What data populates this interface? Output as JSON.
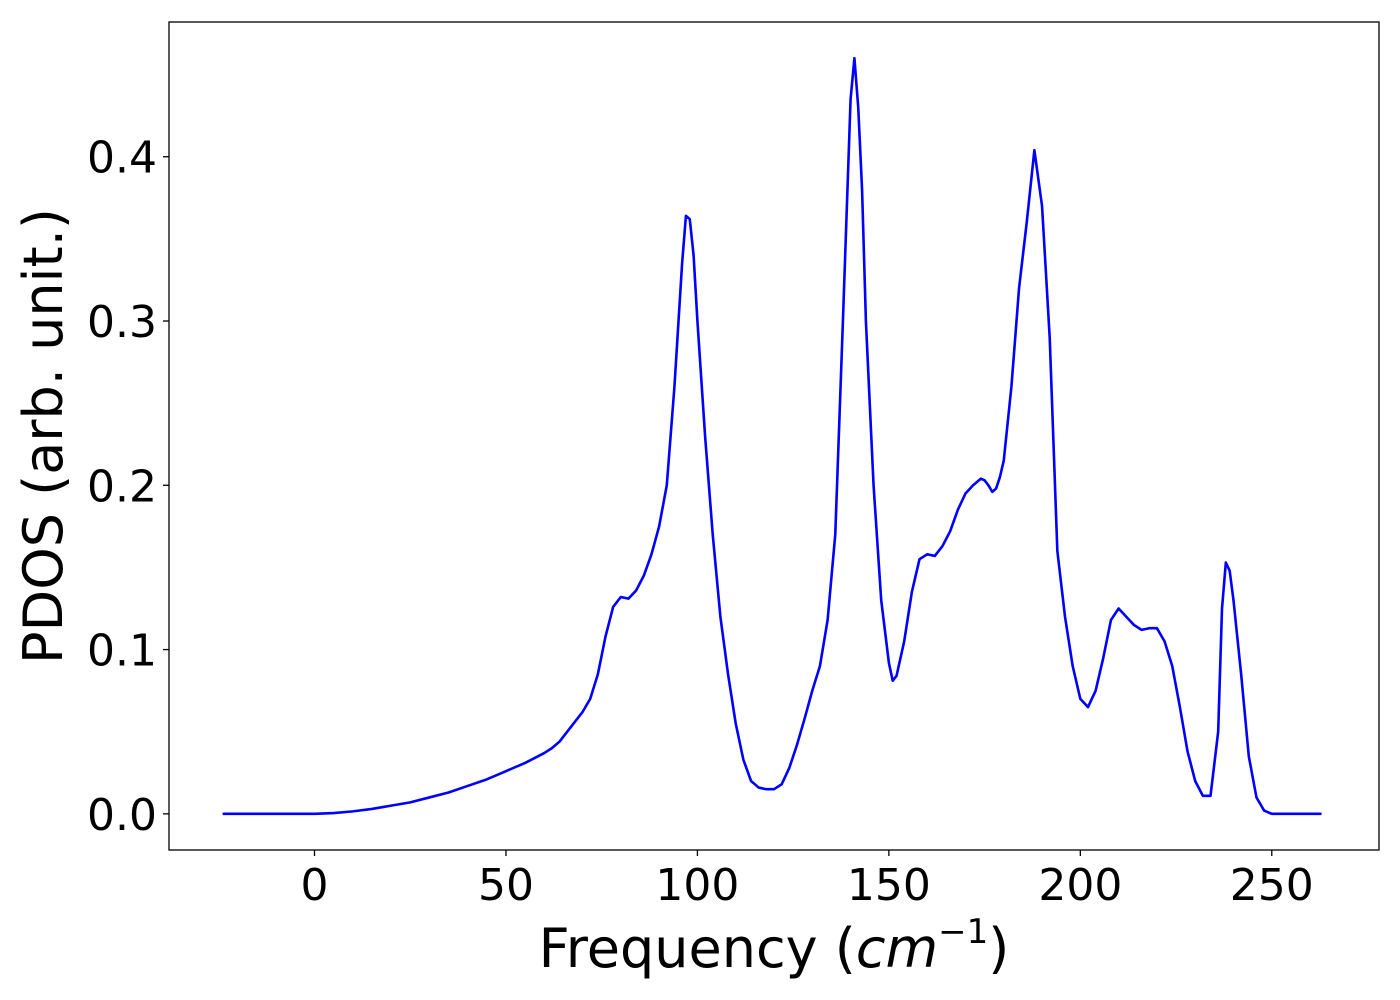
{
  "chart_data": {
    "type": "line",
    "title": "",
    "xlabel_prefix": "Frequency (",
    "xlabel_unit_base": "cm",
    "xlabel_unit_exp": "−1",
    "xlabel_suffix": ")",
    "ylabel": "PDOS (arb. unit.)",
    "xlim": [
      -38,
      278
    ],
    "ylim": [
      -0.022,
      0.482
    ],
    "xticks": [
      0,
      50,
      100,
      150,
      200,
      250
    ],
    "xtick_labels": [
      "0",
      "50",
      "100",
      "150",
      "200",
      "250"
    ],
    "yticks": [
      0.0,
      0.1,
      0.2,
      0.3,
      0.4
    ],
    "ytick_labels": [
      "0.0",
      "0.1",
      "0.2",
      "0.3",
      "0.4"
    ],
    "grid": false,
    "series": [
      {
        "color": "#0000ff",
        "x": [
          -24,
          -10,
          0,
          5,
          10,
          15,
          20,
          25,
          30,
          35,
          40,
          45,
          50,
          55,
          60,
          62,
          64,
          66,
          68,
          70,
          72,
          74,
          76,
          78,
          80,
          82,
          84,
          86,
          88,
          90,
          92,
          94,
          96,
          97,
          98,
          99,
          100,
          102,
          104,
          106,
          108,
          110,
          112,
          114,
          116,
          118,
          120,
          122,
          124,
          126,
          128,
          130,
          132,
          134,
          136,
          138,
          140,
          141,
          142,
          143,
          144,
          146,
          148,
          150,
          151,
          152,
          154,
          156,
          158,
          160,
          162,
          164,
          166,
          168,
          170,
          172,
          174,
          175,
          176,
          177,
          178,
          179,
          180,
          182,
          184,
          186,
          188,
          190,
          192,
          194,
          196,
          198,
          200,
          202,
          204,
          206,
          208,
          210,
          212,
          214,
          216,
          218,
          220,
          222,
          224,
          226,
          228,
          230,
          232,
          234,
          236,
          237,
          238,
          239,
          240,
          242,
          244,
          246,
          248,
          250,
          255,
          263
        ],
        "y": [
          0.0,
          0.0,
          0.0,
          0.0005,
          0.0015,
          0.003,
          0.005,
          0.007,
          0.01,
          0.013,
          0.017,
          0.021,
          0.026,
          0.031,
          0.037,
          0.04,
          0.044,
          0.05,
          0.056,
          0.062,
          0.07,
          0.085,
          0.108,
          0.126,
          0.132,
          0.131,
          0.136,
          0.145,
          0.158,
          0.175,
          0.2,
          0.26,
          0.335,
          0.364,
          0.362,
          0.34,
          0.3,
          0.23,
          0.17,
          0.12,
          0.085,
          0.055,
          0.033,
          0.02,
          0.016,
          0.015,
          0.015,
          0.018,
          0.028,
          0.042,
          0.058,
          0.075,
          0.09,
          0.118,
          0.17,
          0.3,
          0.435,
          0.46,
          0.43,
          0.38,
          0.3,
          0.2,
          0.13,
          0.092,
          0.081,
          0.084,
          0.105,
          0.135,
          0.155,
          0.158,
          0.157,
          0.163,
          0.172,
          0.185,
          0.195,
          0.2,
          0.204,
          0.203,
          0.2,
          0.196,
          0.198,
          0.205,
          0.215,
          0.26,
          0.32,
          0.36,
          0.404,
          0.37,
          0.29,
          0.16,
          0.12,
          0.09,
          0.07,
          0.065,
          0.075,
          0.095,
          0.118,
          0.125,
          0.12,
          0.115,
          0.112,
          0.113,
          0.113,
          0.105,
          0.09,
          0.065,
          0.038,
          0.02,
          0.011,
          0.011,
          0.05,
          0.125,
          0.153,
          0.148,
          0.13,
          0.085,
          0.035,
          0.01,
          0.002,
          0.0,
          0.0,
          0.0
        ]
      }
    ]
  }
}
